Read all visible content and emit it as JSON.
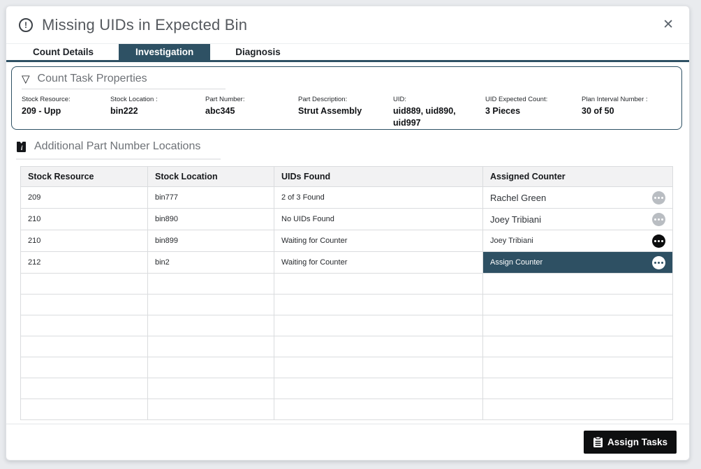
{
  "dialog": {
    "title": "Missing UIDs in Expected Bin",
    "alert_glyph": "!",
    "close_glyph": "✕"
  },
  "tabs": [
    {
      "label": "Count Details",
      "active": false
    },
    {
      "label": "Investigation",
      "active": true
    },
    {
      "label": "Diagnosis",
      "active": false
    }
  ],
  "properties": {
    "heading": "Count Task Properties",
    "collapse_glyph": "▽",
    "fields": [
      {
        "label": "Stock Resource:",
        "value": "209 - Upp"
      },
      {
        "label": "Stock Location :",
        "value": "bin222"
      },
      {
        "label": "Part Number:",
        "value": "abc345"
      },
      {
        "label": "Part Description:",
        "value": "Strut Assembly"
      },
      {
        "label": "UID:",
        "value": "uid889, uid890, uid997"
      },
      {
        "label": "UID Expected Count:",
        "value": "3 Pieces"
      },
      {
        "label": "Plan Interval Number :",
        "value": "30 of 50"
      }
    ]
  },
  "locations": {
    "heading": "Additional Part Number Locations",
    "table": {
      "columns": [
        "Stock Resource",
        "Stock Location",
        "UIDs Found",
        "Assigned Counter"
      ],
      "rows": [
        {
          "stock_resource": "209",
          "stock_location": "bin777",
          "uids_found": "2 of 3 Found",
          "assigned_counter": "Rachel Green",
          "state": "assigned"
        },
        {
          "stock_resource": "210",
          "stock_location": "bin890",
          "uids_found": "No UIDs Found",
          "assigned_counter": "Joey Tribiani",
          "state": "assigned"
        },
        {
          "stock_resource": "210",
          "stock_location": "bin899",
          "uids_found": "Waiting for Counter",
          "assigned_counter": "Joey Tribiani",
          "state": "pending"
        },
        {
          "stock_resource": "212",
          "stock_location": "bin2",
          "uids_found": "Waiting for Counter",
          "assigned_counter": "Assign Counter",
          "state": "unassigned"
        }
      ],
      "empty_row_count": 7
    }
  },
  "footer": {
    "assign_button_label": "Assign Tasks"
  },
  "colors": {
    "accent_teal": "#2e5164",
    "row_select_teal": "#2e5063",
    "button_black": "#0e0f10",
    "ellipsis_grey": "#b9bdc2"
  }
}
